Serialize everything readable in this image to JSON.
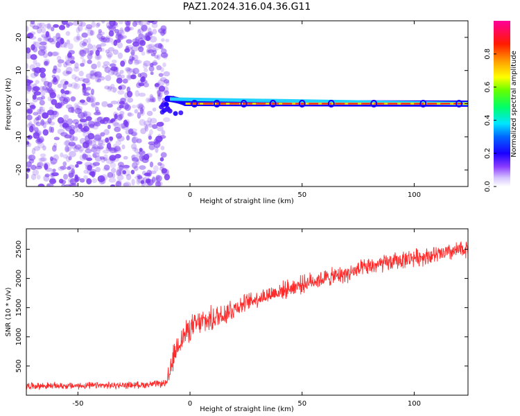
{
  "title": "PAZ1.2024.316.04.36.G11",
  "colors": {
    "snr_line": "#ff2a2a",
    "scatter": "#7a3cf0",
    "ridge_outer": "#1a00ff",
    "ridge_mid": "#22d3ff",
    "ridge_core": "#ff1a1a"
  },
  "chart_data": [
    {
      "type": "heatmap",
      "xlabel": "Height of straight line (km)",
      "ylabel": "Frequency (Hz)",
      "xlim": [
        -73,
        124
      ],
      "ylim": [
        -25,
        25
      ],
      "xticks": [
        -50,
        0,
        50,
        100
      ],
      "yticks": [
        -20,
        -10,
        0,
        10,
        20
      ],
      "grid": false,
      "description_series": [
        {
          "name": "noise region",
          "x_range": [
            -73,
            -10
          ],
          "y_range": [
            -25,
            25
          ]
        },
        {
          "name": "signal ridge",
          "x_range": [
            -10,
            124
          ],
          "frequency": 0
        }
      ],
      "colorbar": {
        "label": "Normalized spectral amplitude",
        "range": [
          0.0,
          1.0
        ],
        "ticks": [
          0.0,
          0.2,
          0.4,
          0.6,
          0.8
        ],
        "colormap": "rainbow"
      }
    },
    {
      "type": "line",
      "xlabel": "Height of straight line (km)",
      "ylabel": "SNR (10 * v/v)",
      "xlim": [
        -73,
        124
      ],
      "ylim": [
        0,
        2850
      ],
      "xticks": [
        -50,
        0,
        50,
        100
      ],
      "yticks": [
        500,
        1000,
        1500,
        2000,
        2500
      ],
      "grid": false,
      "series": [
        {
          "x": [
            -73,
            -60,
            -50,
            -40,
            -30,
            -20,
            -12,
            -10,
            -7,
            -5,
            0,
            5,
            10,
            15,
            20,
            25,
            30,
            35,
            40,
            45,
            50,
            55,
            60,
            65,
            70,
            75,
            80,
            85,
            90,
            95,
            100,
            105,
            110,
            115,
            120,
            124
          ],
          "values": [
            160,
            160,
            160,
            165,
            170,
            180,
            200,
            210,
            700,
            900,
            1150,
            1250,
            1300,
            1400,
            1500,
            1580,
            1660,
            1720,
            1780,
            1840,
            1900,
            1960,
            2000,
            2040,
            2080,
            2140,
            2200,
            2240,
            2280,
            2320,
            2360,
            2380,
            2400,
            2440,
            2480,
            2520
          ]
        }
      ]
    }
  ]
}
